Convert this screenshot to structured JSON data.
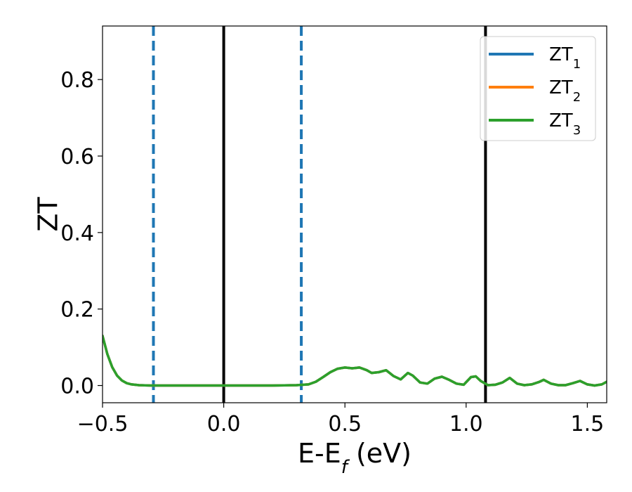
{
  "chart_data": {
    "type": "line",
    "xlabel": "E-E_f (eV)",
    "ylabel": "ZT",
    "xlim": [
      -0.5,
      1.58
    ],
    "ylim": [
      -0.045,
      0.94
    ],
    "xticks": [
      -0.5,
      0.0,
      0.5,
      1.0,
      1.5
    ],
    "xtick_labels": [
      "−0.5",
      "0.0",
      "0.5",
      "1.0",
      "1.5"
    ],
    "yticks": [
      0.0,
      0.2,
      0.4,
      0.6,
      0.8
    ],
    "ytick_labels": [
      "0.0",
      "0.2",
      "0.4",
      "0.6",
      "0.8"
    ],
    "grid": false,
    "legend_position": "top-right",
    "vertical_lines": [
      {
        "x": -0.29,
        "color": "#1f77b4",
        "style": "dashed"
      },
      {
        "x": 0.0,
        "color": "#000000",
        "style": "solid"
      },
      {
        "x": 0.32,
        "color": "#1f77b4",
        "style": "dashed"
      },
      {
        "x": 1.08,
        "color": "#000000",
        "style": "solid"
      }
    ],
    "x": [
      -0.5,
      -0.48,
      -0.46,
      -0.44,
      -0.42,
      -0.4,
      -0.38,
      -0.35,
      -0.3,
      -0.2,
      -0.1,
      0.0,
      0.1,
      0.2,
      0.3,
      0.35,
      0.38,
      0.41,
      0.44,
      0.47,
      0.5,
      0.53,
      0.56,
      0.59,
      0.61,
      0.64,
      0.67,
      0.7,
      0.73,
      0.76,
      0.78,
      0.81,
      0.84,
      0.87,
      0.9,
      0.93,
      0.96,
      0.99,
      1.02,
      1.04,
      1.06,
      1.09,
      1.12,
      1.15,
      1.18,
      1.21,
      1.24,
      1.27,
      1.3,
      1.32,
      1.35,
      1.38,
      1.41,
      1.44,
      1.47,
      1.5,
      1.53,
      1.56,
      1.58
    ],
    "series": [
      {
        "name": "ZT_1",
        "color": "#1f77b4",
        "values": [
          0.13,
          0.082,
          0.048,
          0.026,
          0.013,
          0.006,
          0.003,
          0.001,
          0.0,
          0.0,
          0.0,
          0.0,
          0.0,
          0.0,
          0.001,
          0.003,
          0.01,
          0.022,
          0.035,
          0.044,
          0.047,
          0.045,
          0.047,
          0.04,
          0.033,
          0.035,
          0.04,
          0.025,
          0.016,
          0.033,
          0.026,
          0.008,
          0.005,
          0.018,
          0.023,
          0.015,
          0.005,
          0.002,
          0.022,
          0.024,
          0.012,
          0.001,
          0.002,
          0.008,
          0.02,
          0.005,
          0.001,
          0.003,
          0.009,
          0.015,
          0.005,
          0.001,
          0.001,
          0.006,
          0.012,
          0.003,
          0.0,
          0.003,
          0.01
        ]
      },
      {
        "name": "ZT_2",
        "color": "#ff7f0e",
        "values": [
          0.13,
          0.082,
          0.048,
          0.026,
          0.013,
          0.006,
          0.003,
          0.001,
          0.0,
          0.0,
          0.0,
          0.0,
          0.0,
          0.0,
          0.001,
          0.003,
          0.01,
          0.022,
          0.035,
          0.044,
          0.047,
          0.045,
          0.047,
          0.04,
          0.033,
          0.035,
          0.04,
          0.025,
          0.016,
          0.033,
          0.026,
          0.008,
          0.005,
          0.018,
          0.023,
          0.015,
          0.005,
          0.002,
          0.022,
          0.024,
          0.012,
          0.001,
          0.002,
          0.008,
          0.02,
          0.005,
          0.001,
          0.003,
          0.009,
          0.015,
          0.005,
          0.001,
          0.001,
          0.006,
          0.012,
          0.003,
          0.0,
          0.003,
          0.01
        ]
      },
      {
        "name": "ZT_3",
        "color": "#2ca02c",
        "values": [
          0.13,
          0.082,
          0.048,
          0.026,
          0.013,
          0.006,
          0.003,
          0.001,
          0.0,
          0.0,
          0.0,
          0.0,
          0.0,
          0.0,
          0.001,
          0.003,
          0.01,
          0.022,
          0.035,
          0.044,
          0.047,
          0.045,
          0.047,
          0.04,
          0.033,
          0.035,
          0.04,
          0.025,
          0.016,
          0.033,
          0.026,
          0.008,
          0.005,
          0.018,
          0.023,
          0.015,
          0.005,
          0.002,
          0.022,
          0.024,
          0.012,
          0.001,
          0.002,
          0.008,
          0.02,
          0.005,
          0.001,
          0.003,
          0.009,
          0.015,
          0.005,
          0.001,
          0.001,
          0.006,
          0.012,
          0.003,
          0.0,
          0.003,
          0.01
        ]
      }
    ],
    "legend": [
      {
        "base": "ZT",
        "sub": "1",
        "color": "#1f77b4"
      },
      {
        "base": "ZT",
        "sub": "2",
        "color": "#ff7f0e"
      },
      {
        "base": "ZT",
        "sub": "3",
        "color": "#2ca02c"
      }
    ]
  }
}
